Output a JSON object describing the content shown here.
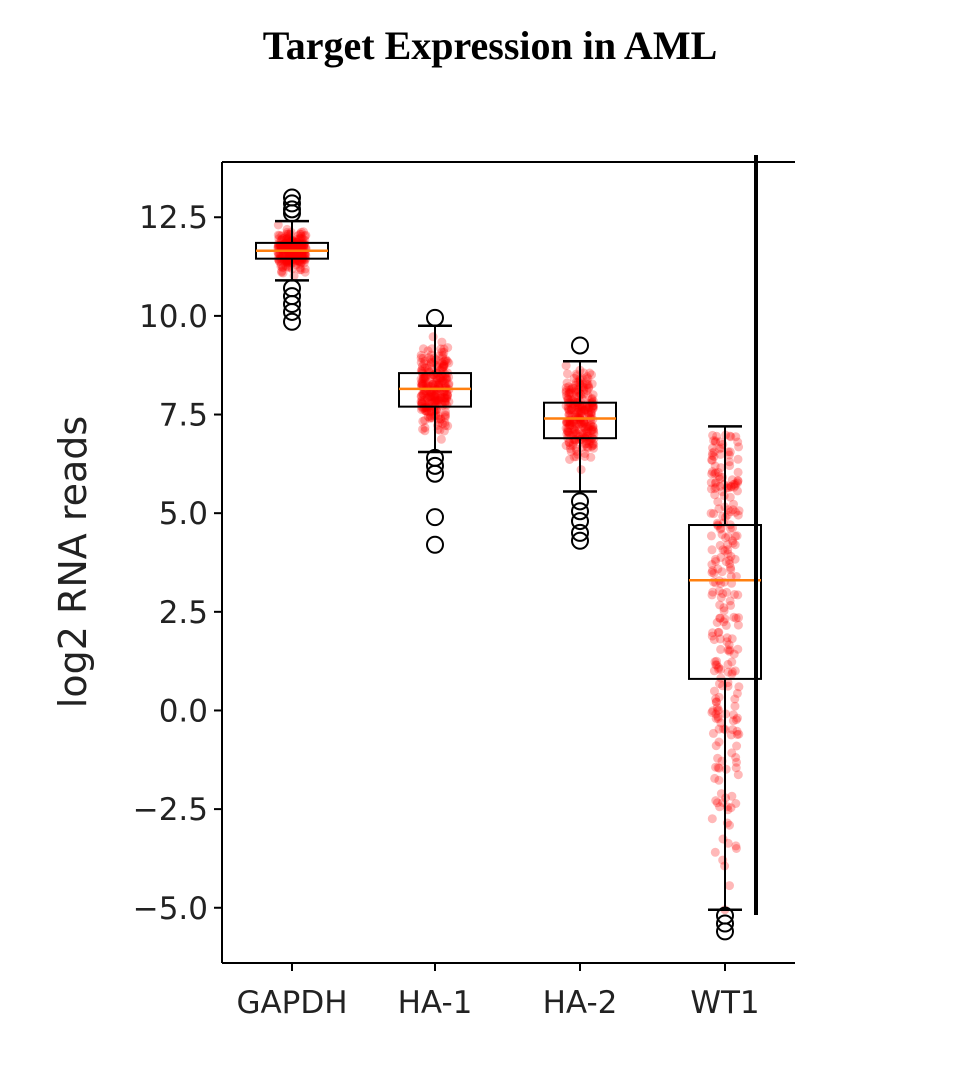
{
  "chart_data": {
    "type": "box",
    "title": "Target Expression in AML",
    "xlabel": "",
    "ylabel": "log2 RNA reads",
    "ylim": [
      -6.4,
      13.9
    ],
    "yticks": [
      {
        "value": 12.5,
        "label": "12.5"
      },
      {
        "value": 10.0,
        "label": "10.0"
      },
      {
        "value": 7.5,
        "label": "7.5"
      },
      {
        "value": 5.0,
        "label": "5.0"
      },
      {
        "value": 2.5,
        "label": "2.5"
      },
      {
        "value": 0.0,
        "label": "0.0"
      },
      {
        "value": -2.5,
        "label": "−2.5"
      },
      {
        "value": -5.0,
        "label": "−5.0"
      }
    ],
    "categories": [
      "GAPDH",
      "HA-1",
      "HA-2",
      "WT1"
    ],
    "boxes": [
      {
        "name": "GAPDH",
        "whisker_low": 10.9,
        "q1": 11.45,
        "median": 11.65,
        "q3": 11.85,
        "whisker_high": 12.4,
        "outliers": [
          13.0,
          12.85,
          12.7,
          12.6,
          10.7,
          10.5,
          10.3,
          10.1,
          9.85
        ],
        "points_range": [
          10.0,
          12.9
        ]
      },
      {
        "name": "HA-1",
        "whisker_low": 6.55,
        "q1": 7.7,
        "median": 8.15,
        "q3": 8.55,
        "whisker_high": 9.75,
        "outliers": [
          9.95,
          6.4,
          6.2,
          6.0,
          4.9,
          4.2
        ],
        "points_range": [
          5.9,
          9.8
        ]
      },
      {
        "name": "HA-2",
        "whisker_low": 5.55,
        "q1": 6.9,
        "median": 7.4,
        "q3": 7.8,
        "whisker_high": 8.85,
        "outliers": [
          9.25,
          5.3,
          5.05,
          4.8,
          4.5,
          4.3
        ],
        "points_range": [
          4.9,
          8.8
        ]
      },
      {
        "name": "WT1",
        "whisker_low": -5.05,
        "q1": 0.8,
        "median": 3.3,
        "q3": 4.7,
        "whisker_high": 7.2,
        "outliers": [
          -5.2,
          -5.4,
          -5.6
        ],
        "points_range": [
          -5.3,
          7.0
        ]
      }
    ],
    "point_color": "#ff0000",
    "median_color": "#ff7f0e",
    "box_color": "#000000"
  }
}
